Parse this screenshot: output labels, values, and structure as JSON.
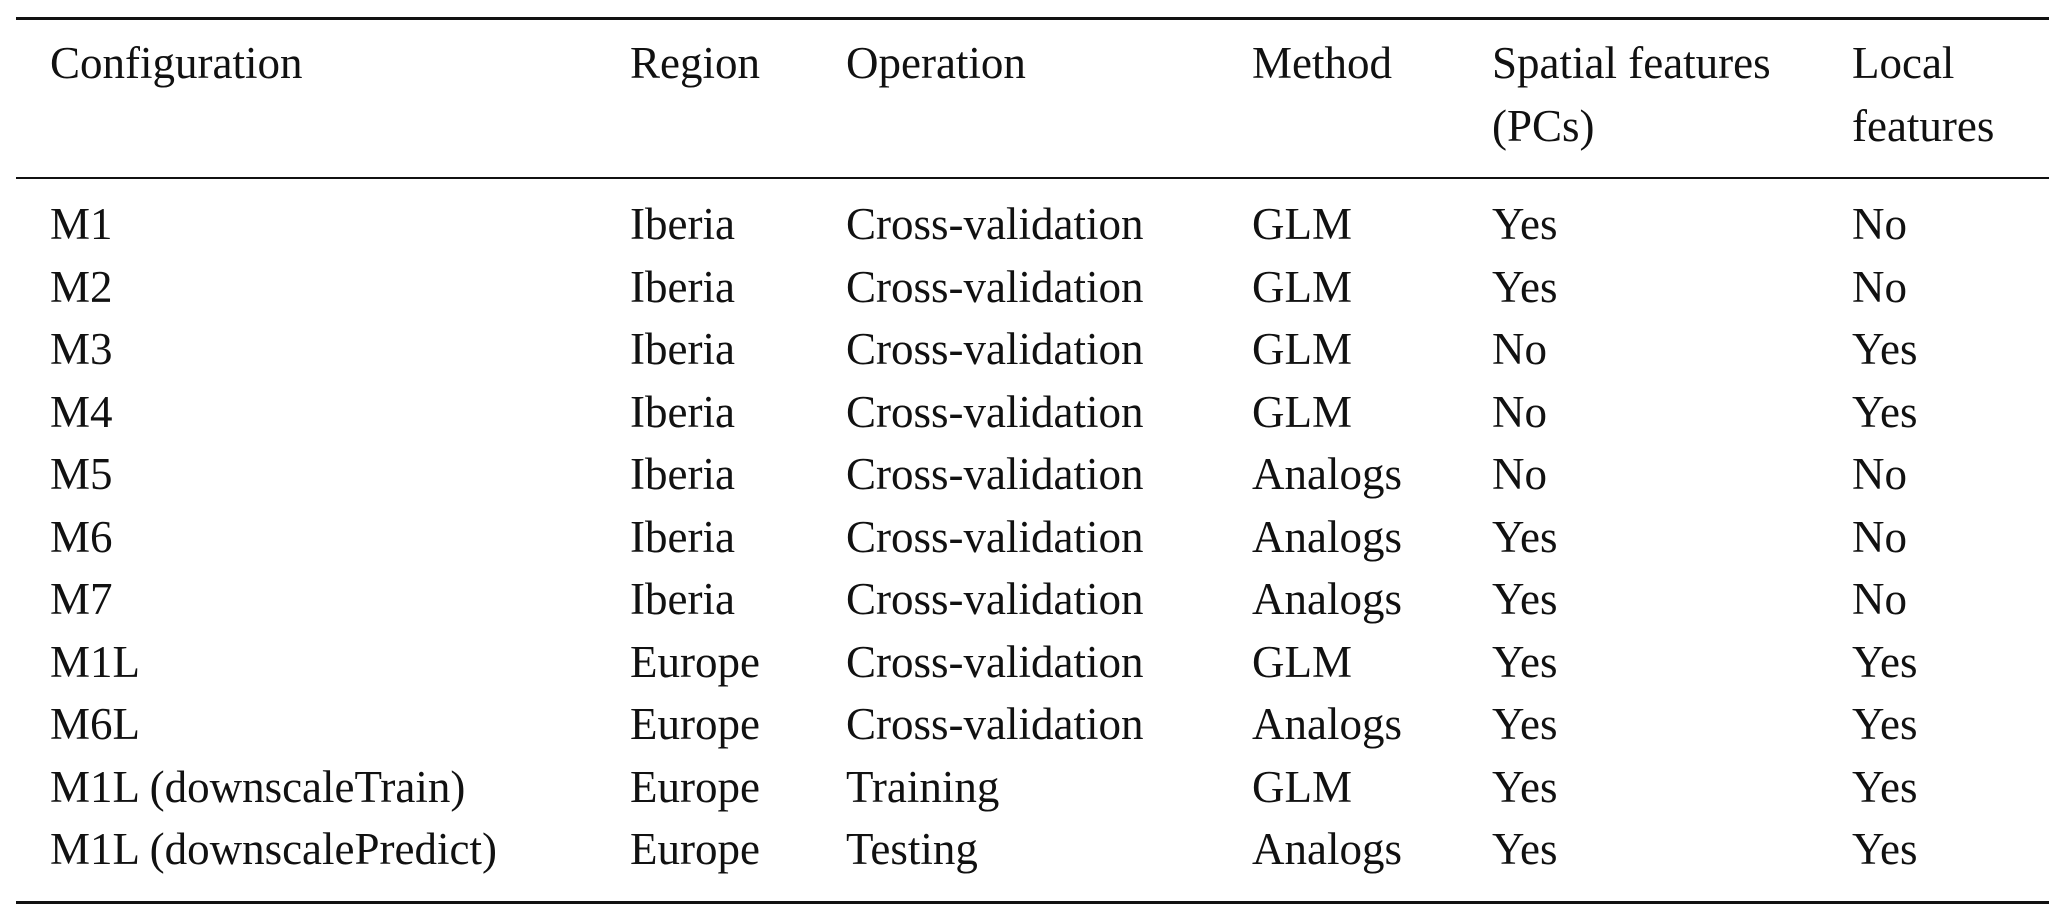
{
  "table": {
    "columns": [
      "Configuration",
      "Region",
      "Operation",
      "Method",
      "Spatial features (PCs)",
      "Local features"
    ],
    "rows": [
      [
        "M1",
        "Iberia",
        "Cross-validation",
        "GLM",
        "Yes",
        "No"
      ],
      [
        "M2",
        "Iberia",
        "Cross-validation",
        "GLM",
        "Yes",
        "No"
      ],
      [
        "M3",
        "Iberia",
        "Cross-validation",
        "GLM",
        "No",
        "Yes"
      ],
      [
        "M4",
        "Iberia",
        "Cross-validation",
        "GLM",
        "No",
        "Yes"
      ],
      [
        "M5",
        "Iberia",
        "Cross-validation",
        "Analogs",
        "No",
        "No"
      ],
      [
        "M6",
        "Iberia",
        "Cross-validation",
        "Analogs",
        "Yes",
        "No"
      ],
      [
        "M7",
        "Iberia",
        "Cross-validation",
        "Analogs",
        "Yes",
        "No"
      ],
      [
        "M1L",
        "Europe",
        "Cross-validation",
        "GLM",
        "Yes",
        "Yes"
      ],
      [
        "M6L",
        "Europe",
        "Cross-validation",
        "Analogs",
        "Yes",
        "Yes"
      ],
      [
        "M1L (downscaleTrain)",
        "Europe",
        "Training",
        "GLM",
        "Yes",
        "Yes"
      ],
      [
        "M1L (downscalePredict)",
        "Europe",
        "Testing",
        "Analogs",
        "Yes",
        "Yes"
      ]
    ]
  }
}
